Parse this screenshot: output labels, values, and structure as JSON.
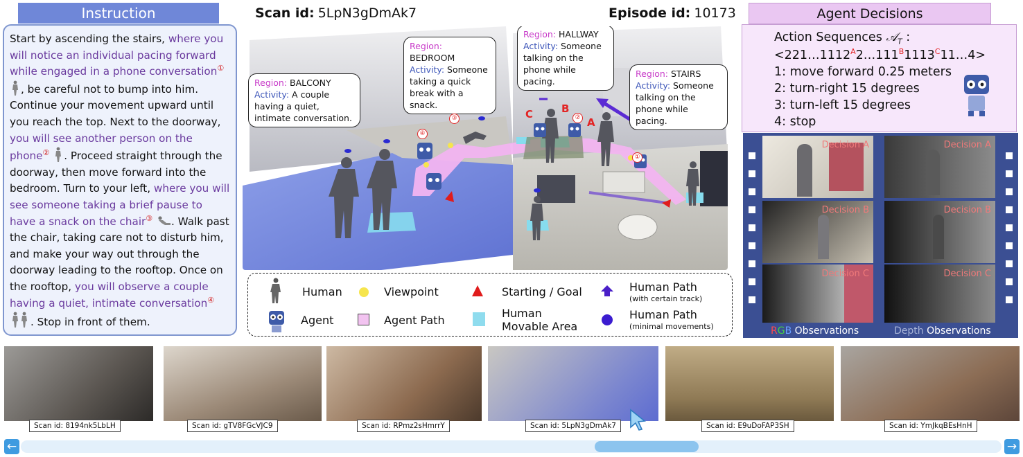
{
  "instruction": {
    "header": "Instruction",
    "segments": {
      "s1": "Start by ascending the stairs, ",
      "s2": "where you will notice an individual pacing forward while engaged in a phone conversation",
      "s2_num": "①",
      "s3": ", be careful not to bump into him. Continue your movement upward until you reach the top. Next to the doorway, ",
      "s4": "you will see another person on the phone",
      "s4_num": "②",
      "s5": ". Proceed straight through the doorway, then move forward into the bedroom. Turn to your left, ",
      "s6": "where you will see someone taking a brief pause to have a snack on the chair",
      "s6_num": "③",
      "s7": ". Walk past the chair, taking care not to disturb him, and make your way out through the doorway leading to the rooftop. Once on the rooftop, ",
      "s8": "you will observe a couple having a quiet, intimate conversation",
      "s8_num": "④",
      "s9": ". Stop in front of them."
    }
  },
  "header": {
    "scan_key": "Scan id:",
    "scan_val": "5LpN3gDmAk7",
    "episode_key": "Episode id:",
    "episode_val": "10173"
  },
  "scene": {
    "bubbles": [
      {
        "region_key": "Region:",
        "region": "BALCONY",
        "activity_key": "Activity:",
        "activity": "A couple having a quiet, intimate conversation."
      },
      {
        "region_key": "Region:",
        "region": "BEDROOM",
        "activity_key": "Activity:",
        "activity": "Someone taking a quick break with a snack."
      },
      {
        "region_key": "Region:",
        "region": "HALLWAY",
        "activity_key": "Activity:",
        "activity": "Someone talking on the phone while pacing."
      },
      {
        "region_key": "Region:",
        "region": "STAIRS",
        "activity_key": "Activity:",
        "activity": "Someone talking on the phone while pacing."
      }
    ],
    "letters": [
      "C",
      "B",
      "A"
    ],
    "numbers": [
      "①",
      "②",
      "③",
      "④"
    ]
  },
  "legend": {
    "human": "Human",
    "viewpoint": "Viewpoint",
    "start_goal": "Starting / Goal",
    "human_path_1": "Human Path",
    "human_path_1_sub": "(with certain track)",
    "agent": "Agent",
    "agent_path": "Agent Path",
    "movable_1": "Human",
    "movable_2": "Movable Area",
    "human_path_2": "Human Path",
    "human_path_2_sub": "(minimal movements)"
  },
  "agent_decisions": {
    "header": "Agent Decisions",
    "action_title": "Action Sequences",
    "action_symbol": "𝒜",
    "action_sub": "T",
    "seq_parts": [
      "<221…1112",
      "A",
      "2…111",
      "B",
      "1113",
      "C",
      "11…4>"
    ],
    "actions": [
      "1: move forward 0.25 meters",
      "2: turn-right 15 degrees",
      "3: turn-left 15 degrees",
      "4: stop"
    ],
    "decisions": [
      "Decision A",
      "Decision A",
      "Decision B",
      "Decision B",
      "Decision C",
      "Decision C"
    ],
    "rgb_r": "R",
    "rgb_g": "G",
    "rgb_b": "B",
    "rgb_obs": "Observations",
    "depth_label": "Depth",
    "depth_obs": "Observations"
  },
  "thumbnails": [
    {
      "scan": "Scan id: 8194nk5LbLH"
    },
    {
      "scan": "Scan id: gTV8FGcVJC9"
    },
    {
      "scan": "Scan id: RPmz2sHmrrY"
    },
    {
      "scan": "Scan id: 5LpN3gDmAk7"
    },
    {
      "scan": "Scan id: E9uDoFAP3SH"
    },
    {
      "scan": "Scan id: YmJkqBEsHnH"
    }
  ],
  "colors": {
    "purple_text": "#6a3a9e",
    "number_red": "#d21b1b",
    "region_magenta": "#c83cc9",
    "activity_blue": "#3c55b8",
    "film_blue": "#3b4f93"
  }
}
